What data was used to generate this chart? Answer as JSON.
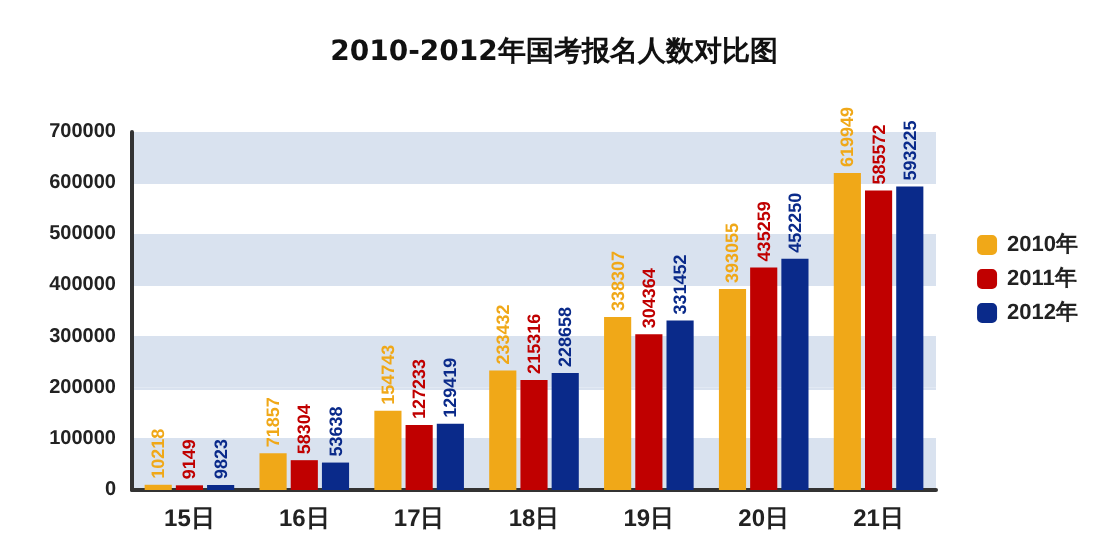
{
  "chart_data": {
    "type": "bar",
    "title": "2010-2012年国考报名人数对比图",
    "categories": [
      "15日",
      "16日",
      "17日",
      "18日",
      "19日",
      "20日",
      "21日"
    ],
    "series": [
      {
        "name": "2010年",
        "color": "#f0a818",
        "values": [
          10218,
          71857,
          154743,
          233432,
          338307,
          393055,
          619949
        ]
      },
      {
        "name": "2011年",
        "color": "#c00000",
        "values": [
          9149,
          58304,
          127233,
          215316,
          304364,
          435259,
          585572
        ]
      },
      {
        "name": "2012年",
        "color": "#0a2a8a",
        "values": [
          9823,
          53638,
          129419,
          228658,
          331452,
          452250,
          593225
        ]
      }
    ],
    "ylim": [
      0,
      700000
    ],
    "yticks": [
      0,
      100000,
      200000,
      300000,
      400000,
      500000,
      600000,
      700000
    ],
    "grid": "y",
    "legend": "right",
    "data_labels": true
  }
}
